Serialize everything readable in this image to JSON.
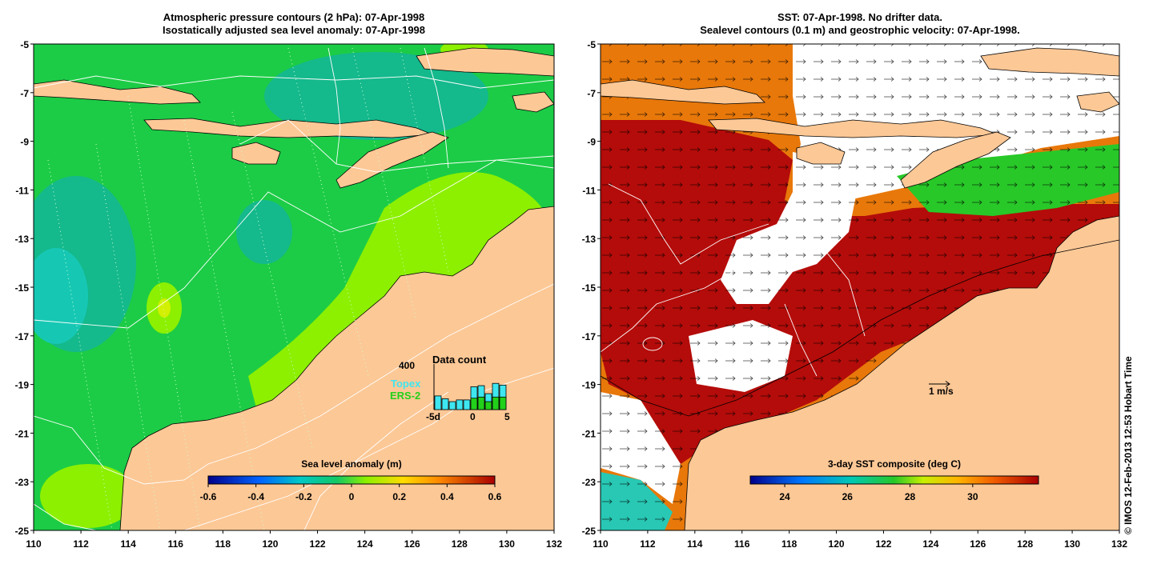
{
  "left_panel": {
    "title_line1": "Atmospheric pressure contours (2 hPa): 07-Apr-1998",
    "title_line2": "Isostatically adjusted sea level anomaly: 07-Apr-1998",
    "colorbar_label": "Sea level anomaly (m)",
    "colorbar_ticks": [
      "-0.6",
      "-0.4",
      "-0.2",
      "0",
      "0.2",
      "0.4",
      "0.6"
    ],
    "inset": {
      "title": "Data count",
      "y_tick": "400",
      "legend": [
        {
          "name": "Topex",
          "color": "#3ee6f0"
        },
        {
          "name": "ERS-2",
          "color": "#22d11a"
        }
      ],
      "x_ticks": [
        "-5d",
        "0",
        "5"
      ],
      "topex_bars": [
        120,
        95,
        70,
        85,
        85,
        200,
        210,
        140,
        230,
        215
      ],
      "ers2_bars": [
        0,
        0,
        0,
        0,
        0,
        100,
        110,
        70,
        110,
        110
      ]
    }
  },
  "right_panel": {
    "title_line1": "SST: 07-Apr-1998. No drifter data.",
    "title_line2": "Sealevel contours (0.1 m) and geostrophic velocity: 07-Apr-1998.",
    "colorbar_label": "3-day SST composite (deg C)",
    "colorbar_ticks": [
      "24",
      "26",
      "28",
      "30"
    ],
    "scale_arrow_label": "1 m/s"
  },
  "axes": {
    "x_ticks": [
      "110",
      "112",
      "114",
      "116",
      "118",
      "120",
      "122",
      "124",
      "126",
      "128",
      "130",
      "132"
    ],
    "y_ticks": [
      "-5",
      "-7",
      "-9",
      "-11",
      "-13",
      "-15",
      "-17",
      "-19",
      "-21",
      "-23",
      "-25"
    ]
  },
  "credit": "© IMOS 12-Feb-2013 12:53 Hobart Time",
  "colors": {
    "land": "#fcc896",
    "sla_base": "#1ccc46",
    "sla_low": "#14b98c",
    "sla_high": "#8cf000",
    "sst_hot": "#b40c0a",
    "sst_warm": "#e8780a",
    "sst_cool": "#28c828"
  }
}
